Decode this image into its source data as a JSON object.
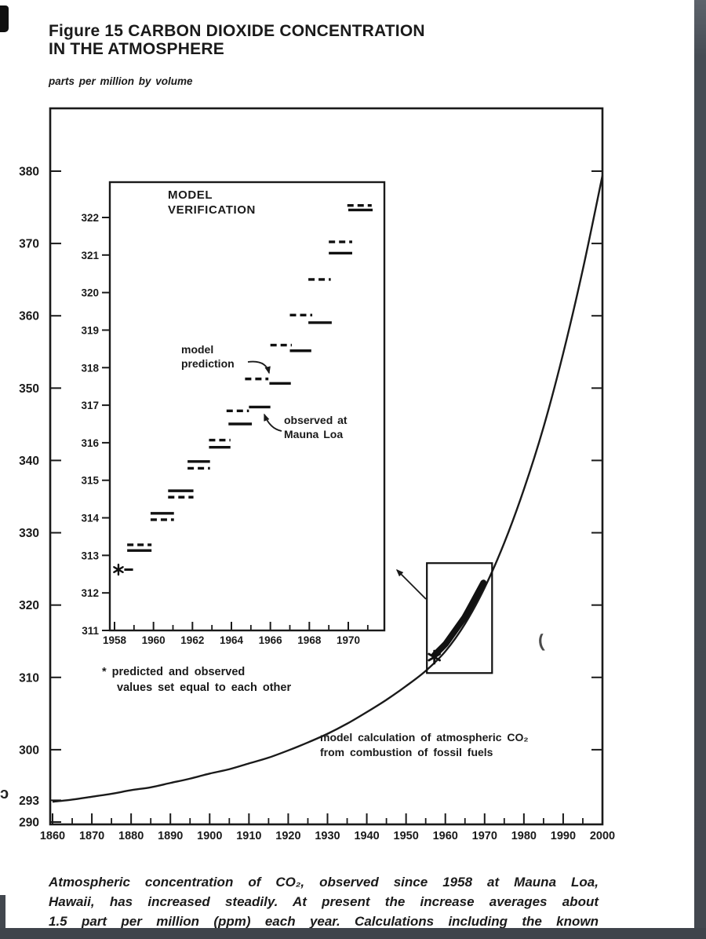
{
  "page": {
    "title_line1": "Figure 15 CARBON DIOXIDE CONCENTRATION",
    "title_line2": "IN THE ATMOSPHERE",
    "units_label": "parts per million by volume",
    "caption_lines": [
      "Atmospheric concentration of CO₂, observed since 1958 at Mauna Loa,",
      "Hawaii, has increased steadily. At present the increase averages about",
      "1.5 part per million (ppm) each year. Calculations including the known"
    ]
  },
  "chart_data": {
    "type": "line",
    "title": "Figure 15 CARBON DIOXIDE CONCENTRATION IN THE ATMOSPHERE",
    "ylabel": "parts per million by volume",
    "main": {
      "xlim": [
        1860,
        2000
      ],
      "ylim": [
        290,
        388
      ],
      "x_ticks": [
        1860,
        1870,
        1880,
        1890,
        1900,
        1910,
        1920,
        1930,
        1940,
        1950,
        1960,
        1970,
        1980,
        1990,
        2000
      ],
      "x_minor_ticks": [
        1865,
        1875,
        1885,
        1895,
        1905,
        1915,
        1925,
        1935,
        1945,
        1955,
        1965,
        1975,
        1985,
        1995
      ],
      "y_tick_labels": [
        290,
        293,
        300,
        310,
        320,
        330,
        340,
        350,
        360,
        370,
        380
      ],
      "y_right_ticks": [
        300,
        310,
        320,
        330,
        340,
        350,
        360,
        370,
        380
      ],
      "series": [
        {
          "name": "model calculation of atmospheric CO₂ from combustion of fossil fuels",
          "style": "solid",
          "points": [
            [
              1860,
              292.8
            ],
            [
              1865,
              293.1
            ],
            [
              1870,
              293.5
            ],
            [
              1875,
              293.9
            ],
            [
              1880,
              294.4
            ],
            [
              1885,
              294.8
            ],
            [
              1890,
              295.4
            ],
            [
              1895,
              296.0
            ],
            [
              1900,
              296.7
            ],
            [
              1905,
              297.3
            ],
            [
              1910,
              298.1
            ],
            [
              1915,
              298.9
            ],
            [
              1920,
              299.9
            ],
            [
              1925,
              301.0
            ],
            [
              1930,
              302.2
            ],
            [
              1935,
              303.6
            ],
            [
              1940,
              305.2
            ],
            [
              1945,
              306.9
            ],
            [
              1950,
              308.8
            ],
            [
              1955,
              310.9
            ],
            [
              1960,
              313.6
            ],
            [
              1965,
              317.4
            ],
            [
              1970,
              322.4
            ],
            [
              1975,
              328.6
            ],
            [
              1980,
              336.0
            ],
            [
              1985,
              344.6
            ],
            [
              1990,
              354.8
            ],
            [
              1995,
              366.4
            ],
            [
              2000,
              379.4
            ]
          ]
        },
        {
          "name": "observed concentrations (thick overlay on curve)",
          "style": "thick",
          "x_range": [
            1957.2,
            1969.7
          ]
        }
      ],
      "asterisk_point": [
        1957.2,
        312.8
      ],
      "zoom_box": {
        "x": [
          1955.3,
          1971.9
        ],
        "y": [
          310.6,
          325.8
        ]
      },
      "annotation_line1": "model calculation of atmospheric CO₂",
      "annotation_line2": "from combustion of fossil fuels"
    },
    "inset": {
      "title_line1": "MODEL",
      "title_line2": "VERIFICATION",
      "xlim": [
        1957.75,
        1971.6
      ],
      "ylim": [
        311,
        322.9
      ],
      "x_tick_labels": [
        1958,
        1960,
        1962,
        1964,
        1966,
        1968,
        1970
      ],
      "x_minor_ticks": [
        1959,
        1961,
        1963,
        1965,
        1967,
        1969,
        1971
      ],
      "y_ticks": [
        311,
        312,
        313,
        314,
        315,
        316,
        317,
        318,
        319,
        320,
        321,
        322
      ],
      "star_point": [
        1958.2,
        312.62
      ],
      "star_dash": {
        "x1": 1958.5,
        "x2": 1958.95,
        "v": 312.62
      },
      "legend": {
        "dashed": "model prediction",
        "solid": "observed at Mauna Loa",
        "star": "predicted and observed values set equal to each other"
      },
      "labels": {
        "prediction_line1": "model",
        "prediction_line2": "prediction",
        "observed_line1": "observed at",
        "observed_line2": "Mauna Loa"
      },
      "marks": [
        {
          "style": "dashed",
          "x1": 1958.65,
          "x2": 1959.9,
          "v": 313.28
        },
        {
          "style": "solid",
          "x1": 1958.65,
          "x2": 1959.9,
          "v": 313.13
        },
        {
          "style": "dashed",
          "x1": 1959.85,
          "x2": 1961.05,
          "v": 313.95
        },
        {
          "style": "solid",
          "x1": 1959.85,
          "x2": 1961.05,
          "v": 314.12
        },
        {
          "style": "dashed",
          "x1": 1960.75,
          "x2": 1962.05,
          "v": 314.55
        },
        {
          "style": "solid",
          "x1": 1960.75,
          "x2": 1962.05,
          "v": 314.72
        },
        {
          "style": "dashed",
          "x1": 1961.75,
          "x2": 1962.9,
          "v": 315.32
        },
        {
          "style": "solid",
          "x1": 1961.75,
          "x2": 1962.9,
          "v": 315.5
        },
        {
          "style": "dashed",
          "x1": 1962.85,
          "x2": 1963.95,
          "v": 316.07
        },
        {
          "style": "solid",
          "x1": 1962.85,
          "x2": 1963.95,
          "v": 315.88
        },
        {
          "style": "dashed",
          "x1": 1963.75,
          "x2": 1964.9,
          "v": 316.85
        },
        {
          "style": "solid",
          "x1": 1963.85,
          "x2": 1965.05,
          "v": 316.5
        },
        {
          "style": "solid",
          "x1": 1964.9,
          "x2": 1966.0,
          "v": 316.95
        },
        {
          "style": "dashed",
          "x1": 1964.7,
          "x2": 1965.9,
          "v": 317.7
        },
        {
          "style": "solid",
          "x1": 1965.95,
          "x2": 1967.05,
          "v": 317.58
        },
        {
          "style": "dashed",
          "x1": 1966.0,
          "x2": 1967.1,
          "v": 318.6
        },
        {
          "style": "solid",
          "x1": 1967.0,
          "x2": 1968.1,
          "v": 318.45
        },
        {
          "style": "dashed",
          "x1": 1967.0,
          "x2": 1968.15,
          "v": 319.4
        },
        {
          "style": "solid",
          "x1": 1967.95,
          "x2": 1969.15,
          "v": 319.2
        },
        {
          "style": "dashed",
          "x1": 1967.95,
          "x2": 1969.1,
          "v": 320.35
        },
        {
          "style": "dashed",
          "x1": 1969.0,
          "x2": 1970.2,
          "v": 321.35
        },
        {
          "style": "solid",
          "x1": 1969.0,
          "x2": 1970.2,
          "v": 321.05
        },
        {
          "style": "dashed",
          "x1": 1969.95,
          "x2": 1971.2,
          "v": 322.32
        },
        {
          "style": "solid",
          "x1": 1970.0,
          "x2": 1971.25,
          "v": 322.2
        }
      ],
      "footnote_line1": "* predicted and observed",
      "footnote_line2": "values set equal to each other"
    }
  }
}
